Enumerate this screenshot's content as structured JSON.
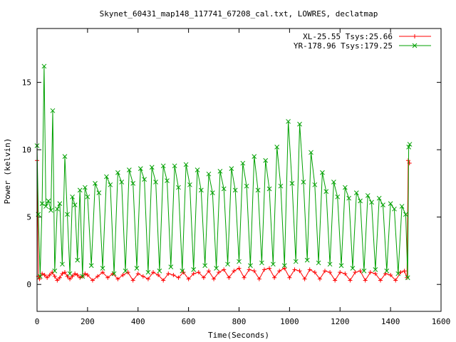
{
  "chart_data": {
    "type": "line",
    "title": "Skynet_60431_map148_117741_67208_cal.txt, LOWRES, declatmap",
    "xlabel": "Time(Seconds)",
    "ylabel": "Power (kelvin)",
    "xlim": [
      0,
      1600
    ],
    "ylim": [
      -2,
      19
    ],
    "xticks": [
      0,
      200,
      400,
      600,
      800,
      1000,
      1200,
      1400,
      1600
    ],
    "yticks": [
      0,
      5,
      10,
      15
    ],
    "grid": false,
    "legend_position": "top-right",
    "series": [
      {
        "name": "XL-25.55 Tsys:25.66",
        "color": "#ff0000",
        "marker": "+",
        "x": [
          0,
          5,
          10,
          20,
          30,
          40,
          50,
          60,
          70,
          80,
          90,
          100,
          110,
          120,
          130,
          140,
          150,
          160,
          170,
          180,
          190,
          200,
          220,
          240,
          260,
          280,
          300,
          320,
          340,
          360,
          380,
          400,
          420,
          440,
          460,
          480,
          500,
          520,
          540,
          560,
          580,
          600,
          620,
          640,
          660,
          680,
          700,
          720,
          740,
          760,
          780,
          800,
          820,
          840,
          860,
          880,
          900,
          920,
          940,
          960,
          980,
          1000,
          1020,
          1040,
          1060,
          1080,
          1100,
          1120,
          1140,
          1160,
          1180,
          1200,
          1220,
          1240,
          1260,
          1280,
          1300,
          1320,
          1340,
          1360,
          1380,
          1400,
          1420,
          1440,
          1455,
          1465,
          1470,
          1475
        ],
        "y": [
          9.2,
          0.6,
          0.4,
          0.8,
          0.7,
          0.5,
          0.7,
          0.9,
          0.6,
          0.3,
          0.5,
          0.8,
          0.9,
          0.6,
          0.4,
          0.6,
          0.8,
          0.7,
          0.5,
          0.6,
          0.8,
          0.7,
          0.3,
          0.6,
          0.9,
          0.5,
          0.8,
          0.4,
          0.7,
          0.9,
          0.3,
          0.8,
          0.6,
          0.4,
          0.9,
          0.7,
          0.3,
          0.8,
          0.7,
          0.5,
          0.9,
          0.4,
          0.8,
          0.9,
          0.5,
          1.0,
          0.4,
          0.9,
          1.1,
          0.5,
          1.0,
          1.2,
          0.5,
          1.1,
          1.0,
          0.4,
          1.1,
          1.2,
          0.5,
          1.0,
          1.2,
          0.5,
          1.1,
          1.0,
          0.4,
          1.1,
          0.9,
          0.4,
          1.0,
          0.9,
          0.3,
          0.9,
          0.8,
          0.3,
          0.9,
          1.0,
          0.3,
          0.9,
          0.8,
          0.3,
          0.8,
          0.7,
          0.3,
          0.9,
          1.0,
          0.5,
          9.2,
          9.0
        ]
      },
      {
        "name": "YR-178.96 Tsys:179.25",
        "color": "#00a000",
        "marker": "x",
        "x": [
          0,
          5,
          12,
          20,
          28,
          35,
          45,
          55,
          62,
          70,
          80,
          90,
          100,
          110,
          120,
          130,
          140,
          150,
          160,
          170,
          180,
          190,
          200,
          215,
          230,
          245,
          260,
          275,
          290,
          305,
          320,
          335,
          350,
          365,
          380,
          395,
          410,
          425,
          440,
          455,
          470,
          485,
          500,
          515,
          530,
          545,
          560,
          575,
          590,
          605,
          620,
          635,
          650,
          665,
          680,
          695,
          710,
          725,
          740,
          755,
          770,
          785,
          800,
          815,
          830,
          845,
          860,
          875,
          890,
          905,
          920,
          935,
          950,
          965,
          980,
          995,
          1010,
          1025,
          1040,
          1055,
          1070,
          1085,
          1100,
          1115,
          1130,
          1145,
          1160,
          1175,
          1190,
          1205,
          1220,
          1235,
          1250,
          1265,
          1280,
          1295,
          1310,
          1325,
          1340,
          1355,
          1370,
          1385,
          1400,
          1415,
          1430,
          1445,
          1460,
          1468,
          1472,
          1476
        ],
        "y": [
          10.3,
          5.2,
          0.6,
          6.0,
          16.2,
          5.8,
          6.2,
          5.5,
          12.9,
          1.0,
          5.6,
          6.0,
          1.5,
          9.5,
          5.2,
          0.8,
          6.5,
          5.9,
          1.8,
          7.0,
          0.6,
          7.2,
          6.5,
          1.4,
          7.5,
          6.8,
          1.2,
          8.0,
          7.4,
          0.8,
          8.3,
          7.6,
          1.0,
          8.5,
          7.5,
          1.2,
          8.6,
          7.8,
          0.9,
          8.7,
          7.6,
          1.0,
          8.8,
          7.7,
          1.3,
          8.8,
          7.2,
          1.0,
          8.9,
          7.4,
          1.1,
          8.5,
          7.0,
          1.4,
          8.2,
          6.8,
          1.2,
          8.4,
          7.1,
          1.5,
          8.6,
          7.0,
          1.7,
          9.0,
          7.3,
          1.4,
          9.5,
          7.0,
          1.6,
          9.2,
          7.1,
          1.5,
          10.2,
          7.3,
          1.4,
          12.1,
          7.5,
          1.7,
          11.9,
          7.6,
          1.8,
          9.8,
          7.4,
          1.6,
          8.3,
          6.9,
          1.5,
          7.6,
          6.5,
          1.4,
          7.2,
          6.4,
          1.2,
          6.8,
          6.2,
          1.0,
          6.6,
          6.1,
          1.1,
          6.4,
          5.9,
          1.0,
          6.0,
          5.6,
          0.8,
          5.8,
          5.2,
          0.5,
          10.2,
          10.4
        ]
      }
    ]
  }
}
